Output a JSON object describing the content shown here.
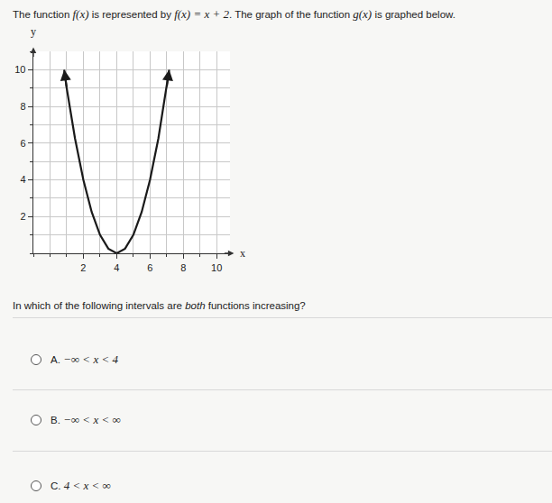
{
  "intro": [
    {
      "text": "The function "
    },
    {
      "text": "f(x)",
      "math": true
    },
    {
      "text": " is represented by "
    },
    {
      "text": "f(x) = x + 2",
      "math": true
    },
    {
      "text": ". The graph of the function "
    },
    {
      "text": "g(x)",
      "math": true
    },
    {
      "text": " is graphed below."
    }
  ],
  "chart_data": {
    "type": "line",
    "x": [
      0.85,
      1,
      1.5,
      2,
      2.5,
      3,
      3.5,
      4,
      4.5,
      5,
      5.5,
      6,
      6.5,
      7,
      7.15
    ],
    "values": [
      10,
      9,
      6.25,
      4,
      2.25,
      1,
      0.25,
      0,
      0.25,
      1,
      2.25,
      4,
      6.25,
      9,
      10
    ],
    "color": "#1a1a1a",
    "xlim": [
      -1,
      10.8
    ],
    "ylim": [
      0,
      11
    ],
    "xticks": [
      2,
      4,
      6,
      8,
      10
    ],
    "yticks": [
      2,
      4,
      6,
      8,
      10
    ],
    "xlabel": "x",
    "ylabel": "y",
    "grid": true
  },
  "question": [
    {
      "text": "In which of the following intervals are "
    },
    {
      "text": "both",
      "em": true
    },
    {
      "text": " functions increasing?"
    }
  ],
  "options": [
    {
      "letter": "A.",
      "text": "−∞ < x < 4"
    },
    {
      "letter": "B.",
      "text": "−∞ < x < ∞"
    },
    {
      "letter": "C.",
      "text": "4 < x < ∞"
    }
  ]
}
